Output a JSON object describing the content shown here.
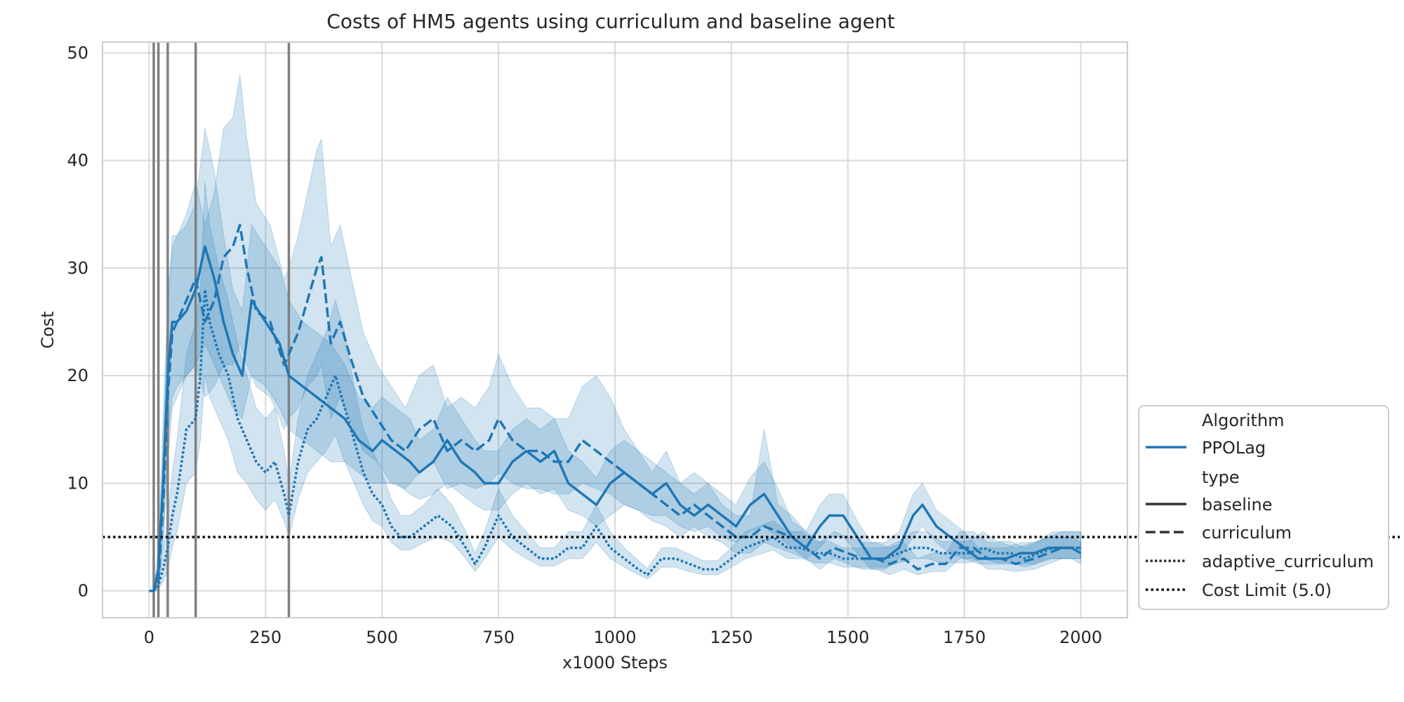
{
  "chart_data": {
    "type": "line",
    "title": "Costs of HM5 agents using curriculum and baseline agent",
    "xlabel": "x1000 Steps",
    "ylabel": "Cost",
    "xlim": [
      -100,
      2100
    ],
    "ylim": [
      -2.5,
      51
    ],
    "xticks": [
      0,
      250,
      500,
      750,
      1000,
      1250,
      1500,
      1750,
      2000
    ],
    "yticks": [
      0,
      10,
      20,
      30,
      40,
      50
    ],
    "grid": true,
    "legend_position": "outside-right-bottom",
    "legend": {
      "algorithm_header": "Algorithm",
      "algorithm_entry": "PPOLag",
      "type_header": "type",
      "entries": [
        "baseline",
        "curriculum",
        "adaptive_curriculum",
        "Cost Limit (5.0)"
      ]
    },
    "line_color": "#1f77b4",
    "band_color": "#1f77b4",
    "cost_limit": 5.0,
    "curriculum_markers_x": [
      10,
      20,
      40,
      100,
      300
    ],
    "series": [
      {
        "name": "baseline",
        "style": "solid",
        "x": [
          0,
          10,
          20,
          30,
          40,
          50,
          60,
          80,
          100,
          120,
          140,
          160,
          180,
          200,
          220,
          250,
          280,
          300,
          330,
          360,
          390,
          420,
          450,
          480,
          500,
          530,
          560,
          580,
          610,
          640,
          670,
          700,
          720,
          750,
          780,
          810,
          840,
          870,
          900,
          930,
          960,
          990,
          1020,
          1050,
          1080,
          1110,
          1140,
          1170,
          1200,
          1230,
          1260,
          1290,
          1320,
          1350,
          1380,
          1410,
          1440,
          1460,
          1490,
          1520,
          1550,
          1580,
          1610,
          1640,
          1660,
          1690,
          1720,
          1750,
          1780,
          1810,
          1840,
          1870,
          1900,
          1930,
          1960,
          1980,
          2000
        ],
        "y": [
          0,
          0,
          2,
          10,
          20,
          25,
          25,
          26,
          28,
          32,
          29,
          25,
          22,
          20,
          27,
          25,
          23,
          20,
          19,
          18,
          17,
          16,
          14,
          13,
          14,
          13,
          12,
          11,
          12,
          14,
          12,
          11,
          10,
          10,
          12,
          13,
          12,
          13,
          10,
          9,
          8,
          10,
          11,
          10,
          9,
          10,
          8,
          7,
          8,
          7,
          6,
          8,
          9,
          7,
          5,
          4,
          6,
          7,
          7,
          5,
          3,
          3,
          4,
          7,
          8,
          6,
          5,
          4,
          3,
          3,
          3,
          3.5,
          3.5,
          4,
          4,
          4,
          3.5
        ],
        "lower": [
          0,
          0,
          0.5,
          5,
          14,
          18,
          19,
          20,
          21,
          23,
          21,
          19,
          17,
          16,
          20,
          19,
          17,
          15,
          14,
          13,
          12,
          12,
          11,
          10,
          10,
          10,
          9,
          8.5,
          9,
          10,
          9,
          8,
          7.5,
          7.5,
          9,
          10,
          9,
          9.5,
          7.5,
          7,
          6,
          7,
          8,
          7.5,
          7,
          7,
          6,
          5.5,
          6,
          5,
          4.5,
          5.5,
          6,
          5,
          4,
          3,
          4,
          5,
          5,
          3.5,
          2,
          2,
          3,
          5,
          6,
          4.5,
          3.5,
          3,
          2.5,
          2.5,
          2.5,
          2.5,
          2.5,
          3,
          3,
          3,
          2.5
        ],
        "upper": [
          0,
          0,
          4,
          16,
          27,
          33,
          33,
          34,
          36,
          43,
          39,
          33,
          28,
          26,
          34,
          32,
          30,
          27,
          25,
          24,
          23,
          21,
          18,
          17,
          18,
          17,
          16,
          14,
          15,
          18,
          16,
          14,
          13,
          13,
          15,
          16,
          15,
          16,
          13,
          12,
          10.5,
          13,
          14,
          13,
          11,
          13,
          10,
          9,
          10,
          9,
          8,
          10.5,
          12,
          9.5,
          6.5,
          5.5,
          8,
          9,
          9,
          6.5,
          4.5,
          4.5,
          5.5,
          9,
          10,
          7.5,
          6.5,
          5.5,
          4,
          4,
          4,
          4.5,
          4.5,
          5,
          5,
          5,
          4.5
        ]
      },
      {
        "name": "curriculum",
        "style": "dashed",
        "x": [
          0,
          10,
          20,
          30,
          40,
          50,
          60,
          80,
          100,
          120,
          140,
          160,
          180,
          195,
          210,
          230,
          260,
          290,
          300,
          320,
          340,
          360,
          370,
          390,
          410,
          430,
          460,
          490,
          520,
          550,
          580,
          610,
          640,
          670,
          700,
          730,
          750,
          780,
          810,
          840,
          870,
          900,
          930,
          960,
          990,
          1020,
          1050,
          1080,
          1110,
          1140,
          1170,
          1200,
          1230,
          1260,
          1290,
          1320,
          1350,
          1380,
          1410,
          1440,
          1470,
          1500,
          1530,
          1560,
          1590,
          1620,
          1650,
          1680,
          1710,
          1740,
          1770,
          1800,
          1830,
          1860,
          1900,
          1930,
          1960,
          1980,
          2000
        ],
        "y": [
          0,
          0,
          1,
          8,
          18,
          24,
          25,
          27,
          29,
          25,
          27,
          31,
          32,
          34,
          30,
          26,
          25,
          21,
          22,
          24,
          27,
          30,
          31,
          23,
          25,
          22,
          18,
          16,
          14,
          13,
          15,
          16,
          13,
          14,
          13,
          14,
          16,
          14,
          13,
          13,
          12,
          12,
          14,
          13,
          12,
          11,
          10,
          9,
          8,
          7,
          8,
          7,
          6,
          5,
          5,
          6,
          5.5,
          5,
          4,
          3,
          4,
          3.5,
          3,
          3,
          2.5,
          3,
          2,
          2.5,
          2.5,
          4,
          4,
          3,
          3,
          2.5,
          3,
          3.5,
          4,
          4,
          4
        ],
        "lower": [
          0,
          0,
          0.2,
          4,
          12,
          17,
          18,
          20,
          21,
          18,
          19,
          21,
          21,
          23,
          21,
          19,
          18,
          15,
          16,
          17,
          19,
          20,
          21,
          16,
          18,
          16,
          13,
          12,
          10,
          9.5,
          11,
          12,
          9.5,
          10,
          9.5,
          10,
          11,
          10,
          9.5,
          9.5,
          9,
          9,
          10,
          9.5,
          9,
          8,
          7.5,
          6.5,
          6,
          5,
          6,
          5,
          4.5,
          3.5,
          3.5,
          4.5,
          4,
          3.5,
          3,
          2,
          3,
          2.5,
          2,
          2,
          1.5,
          2,
          1.5,
          1.8,
          1.8,
          3,
          3,
          2,
          2,
          1.8,
          2,
          2.5,
          3,
          3,
          3
        ],
        "upper": [
          0,
          0,
          2,
          13,
          26,
          32,
          33,
          35,
          38,
          34,
          37,
          43,
          44,
          48,
          42,
          36,
          34,
          29,
          30,
          33,
          37,
          41,
          42,
          32,
          34,
          30,
          24,
          21,
          19,
          17,
          20,
          21,
          17,
          18,
          17,
          19,
          22,
          19,
          17,
          17,
          16,
          16,
          19,
          20,
          18,
          15,
          13,
          12,
          11,
          10,
          11,
          10,
          8,
          7,
          7,
          15,
          8,
          7,
          5.5,
          4.5,
          5.5,
          5,
          4.5,
          4.5,
          4,
          4.5,
          3,
          3.5,
          3.5,
          5.5,
          5.5,
          4.5,
          4.5,
          4,
          4.5,
          5,
          5.5,
          5.5,
          5.5
        ]
      },
      {
        "name": "adaptive_curriculum",
        "style": "dotted",
        "x": [
          0,
          10,
          20,
          30,
          40,
          50,
          60,
          80,
          100,
          110,
          120,
          130,
          150,
          170,
          190,
          210,
          230,
          250,
          270,
          290,
          300,
          320,
          340,
          360,
          380,
          400,
          420,
          440,
          460,
          480,
          500,
          520,
          540,
          560,
          590,
          620,
          650,
          680,
          700,
          720,
          750,
          780,
          810,
          840,
          870,
          900,
          930,
          960,
          990,
          1020,
          1050,
          1070,
          1100,
          1130,
          1160,
          1190,
          1220,
          1250,
          1280,
          1310,
          1340,
          1370,
          1400,
          1430,
          1460,
          1490,
          1520,
          1550,
          1580,
          1610,
          1640,
          1670,
          1700,
          1730,
          1760,
          1790,
          1820,
          1850,
          1880,
          1910,
          1940,
          1970,
          2000
        ],
        "y": [
          0,
          0,
          0.5,
          2,
          4,
          7,
          9,
          15,
          16,
          20,
          28,
          25,
          22,
          20,
          16,
          14,
          12,
          11,
          12,
          9,
          7,
          12,
          15,
          16,
          18,
          20,
          17,
          14,
          11,
          9,
          8,
          6,
          5,
          5,
          6,
          7,
          6,
          4,
          2.5,
          4,
          7,
          5,
          4,
          3,
          3,
          4,
          4,
          6,
          4,
          3,
          2,
          1.5,
          3,
          3,
          2.5,
          2,
          2,
          3,
          4,
          4.5,
          5,
          4,
          4,
          3.5,
          3.5,
          3,
          3,
          3,
          3,
          3.5,
          4,
          4,
          3.5,
          3.5,
          3.5,
          4,
          3.5,
          3.5,
          3,
          3.5,
          4,
          4,
          4
        ],
        "lower": [
          0,
          0,
          0.1,
          0.8,
          2,
          4,
          5.5,
          10,
          11,
          14,
          20,
          18,
          16,
          14,
          11,
          10,
          8.5,
          7.5,
          8.5,
          6.5,
          5,
          8.5,
          11,
          12,
          13,
          14.5,
          12,
          10,
          8,
          6.5,
          6,
          4.5,
          3.8,
          3.8,
          4.5,
          5,
          4.5,
          3,
          1.8,
          3,
          5,
          3.8,
          3,
          2.3,
          2.3,
          3,
          3,
          4.5,
          3,
          2.2,
          1.5,
          1.1,
          2.2,
          2.2,
          1.8,
          1.5,
          1.5,
          2.2,
          3,
          3.4,
          3.8,
          3,
          3,
          2.6,
          2.6,
          2.2,
          2.2,
          2.2,
          2.2,
          2.6,
          3,
          3,
          2.6,
          2.6,
          2.6,
          3,
          2.6,
          2.6,
          2.2,
          2.6,
          3,
          3,
          3
        ],
        "upper": [
          0,
          0,
          1,
          3.5,
          7,
          11,
          14,
          22,
          25,
          28,
          38,
          34,
          30,
          27,
          23,
          20,
          17,
          16,
          17,
          13,
          10,
          16,
          20,
          22,
          24,
          27,
          24,
          19,
          15,
          13,
          11,
          8.5,
          7,
          7,
          8,
          9.5,
          8,
          5.5,
          3.5,
          5.5,
          9.5,
          7,
          5.5,
          4,
          4,
          5.5,
          5.5,
          8,
          5.5,
          4,
          2.8,
          2.1,
          4,
          4,
          3.4,
          2.8,
          2.8,
          4,
          5.5,
          6,
          6.5,
          5.5,
          5.5,
          4.6,
          4.6,
          4,
          4,
          4,
          4,
          4.6,
          5.5,
          5.5,
          4.6,
          4.6,
          4.6,
          5.5,
          4.6,
          4.6,
          4,
          4.6,
          5.5,
          5.5,
          5.5
        ]
      }
    ]
  }
}
